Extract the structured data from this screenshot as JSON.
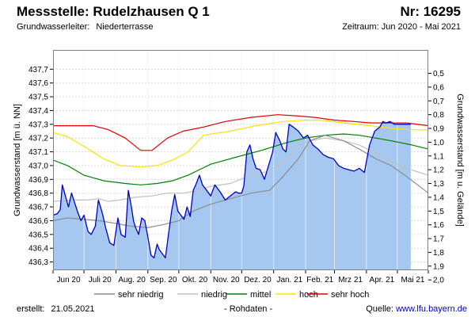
{
  "header": {
    "title": "Messstelle: Rudelzhausen Q 1",
    "number": "Nr: 16295",
    "aquifer_label": "Grundwasserleiter:",
    "aquifer_value": "Niederterrasse",
    "period": "Zeitraum: Jun 2020 - Mai 2021"
  },
  "footer": {
    "created_label": "erstellt:",
    "created_date": "21.05.2021",
    "data_note": "- Rohdaten -",
    "source_label": "Quelle:",
    "source_url": "www.lfu.bayern.de"
  },
  "colors": {
    "fill": "#a6c8f0",
    "measured": "#0000cc",
    "sehr_niedrig": "#8c8c8c",
    "niedrig": "#c0c0c0",
    "mittel": "#008000",
    "hoch": "#ffe100",
    "sehr_hoch": "#e00000",
    "grid": "#d8d8d8"
  },
  "chart_data": {
    "type": "line",
    "x_unit": "day",
    "xlim": [
      "2020-06-01",
      "2021-05-31"
    ],
    "xlabel": "",
    "ylabel_left": "Grundwasserstand [m ü. NN]",
    "ylabel_right": "Grundwasserstand [m u. Gelände]",
    "ylim_left": [
      436.24,
      437.84
    ],
    "yticks_left": [
      "436,3",
      "436,4",
      "436,5",
      "436,6",
      "436,7",
      "436,8",
      "436,9",
      "437,0",
      "437,1",
      "437,2",
      "437,3",
      "437,4",
      "437,5",
      "437,6",
      "437,7"
    ],
    "yticks_right": [
      "0,5",
      "0,6",
      "0,7",
      "0,8",
      "0,9",
      "1,0",
      "1,1",
      "1,2",
      "1,3",
      "1,4",
      "1,5",
      "1,6",
      "1,7",
      "1,8",
      "1,9",
      "2,0"
    ],
    "xticks": [
      "Jun 20",
      "Juli 20",
      "Aug. 20",
      "Sep. 20",
      "Okt. 20",
      "Nov. 20",
      "Dez. 20",
      "Jan. 21",
      "Feb. 21",
      "Mrz 21",
      "Apr. 21",
      "Mai 21"
    ],
    "grid": true,
    "legend_position": "bottom",
    "legend": [
      {
        "key": "sehr_niedrig",
        "label": "sehr niedrig"
      },
      {
        "key": "niedrig",
        "label": "niedrig"
      },
      {
        "key": "mittel",
        "label": "mittel"
      },
      {
        "key": "hoch",
        "label": "hoch"
      },
      {
        "key": "sehr_hoch",
        "label": "sehr hoch"
      }
    ],
    "series": [
      {
        "key": "sehr_hoch",
        "x": [
          "2020-06-01",
          "2020-06-20",
          "2020-07-10",
          "2020-07-25",
          "2020-08-10",
          "2020-08-25",
          "2020-09-05",
          "2020-09-20",
          "2020-10-05",
          "2020-10-25",
          "2020-11-15",
          "2020-12-10",
          "2021-01-05",
          "2021-01-25",
          "2021-02-10",
          "2021-03-01",
          "2021-03-20",
          "2021-04-05",
          "2021-04-20",
          "2021-05-10",
          "2021-05-31"
        ],
        "y": [
          437.29,
          437.29,
          437.29,
          437.26,
          437.2,
          437.11,
          437.11,
          437.2,
          437.25,
          437.28,
          437.32,
          437.35,
          437.37,
          437.36,
          437.35,
          437.33,
          437.32,
          437.31,
          437.31,
          437.31,
          437.29
        ]
      },
      {
        "key": "hoch",
        "x": [
          "2020-06-01",
          "2020-06-15",
          "2020-07-01",
          "2020-07-20",
          "2020-08-05",
          "2020-08-25",
          "2020-09-10",
          "2020-09-25",
          "2020-10-10",
          "2020-10-25",
          "2020-11-20",
          "2020-12-15",
          "2021-01-10",
          "2021-02-01",
          "2021-02-15",
          "2021-03-10",
          "2021-04-05",
          "2021-04-25",
          "2021-05-15",
          "2021-05-31"
        ],
        "y": [
          437.24,
          437.21,
          437.14,
          437.05,
          437.0,
          436.99,
          437.0,
          437.04,
          437.1,
          437.22,
          437.25,
          437.29,
          437.32,
          437.33,
          437.33,
          437.31,
          437.29,
          437.27,
          437.26,
          437.26
        ]
      },
      {
        "key": "mittel",
        "x": [
          "2020-06-01",
          "2020-06-15",
          "2020-07-01",
          "2020-07-20",
          "2020-08-10",
          "2020-08-25",
          "2020-09-10",
          "2020-09-25",
          "2020-10-10",
          "2020-11-01",
          "2020-11-25",
          "2020-12-20",
          "2021-01-15",
          "2021-02-01",
          "2021-02-20",
          "2021-03-10",
          "2021-03-25",
          "2021-04-10",
          "2021-04-25",
          "2021-05-15",
          "2021-05-31"
        ],
        "y": [
          437.04,
          437.0,
          436.93,
          436.89,
          436.87,
          436.86,
          436.87,
          436.89,
          436.93,
          437.01,
          437.06,
          437.11,
          437.17,
          437.2,
          437.22,
          437.23,
          437.22,
          437.2,
          437.18,
          437.15,
          437.12
        ]
      },
      {
        "key": "niedrig",
        "x": [
          "2020-06-01",
          "2020-06-20",
          "2020-07-05",
          "2020-07-15",
          "2020-07-25",
          "2020-08-05",
          "2020-08-20",
          "2020-09-05",
          "2020-09-20",
          "2020-10-05",
          "2020-10-20",
          "2020-11-01",
          "2020-11-20",
          "2020-12-10",
          "2020-12-28",
          "2021-01-15",
          "2021-01-25",
          "2021-02-05",
          "2021-02-20",
          "2021-03-10",
          "2021-03-25",
          "2021-04-10",
          "2021-04-25",
          "2021-05-10",
          "2021-05-31"
        ],
        "y": [
          436.74,
          436.75,
          436.75,
          436.76,
          436.74,
          436.75,
          436.77,
          436.78,
          436.8,
          436.8,
          436.82,
          436.85,
          436.87,
          436.93,
          436.96,
          437.05,
          437.15,
          437.18,
          437.2,
          437.18,
          437.15,
          437.09,
          437.03,
          436.98,
          436.93
        ]
      },
      {
        "key": "sehr_niedrig",
        "x": [
          "2020-06-01",
          "2020-06-15",
          "2020-07-01",
          "2020-07-15",
          "2020-08-01",
          "2020-08-15",
          "2020-09-01",
          "2020-09-15",
          "2020-10-01",
          "2020-10-15",
          "2020-11-01",
          "2020-11-20",
          "2020-12-10",
          "2020-12-28",
          "2021-01-10",
          "2021-01-25",
          "2021-02-05",
          "2021-02-20",
          "2021-03-10",
          "2021-03-25",
          "2021-04-10",
          "2021-04-25",
          "2021-05-10",
          "2021-05-31"
        ],
        "y": [
          436.6,
          436.62,
          436.61,
          436.6,
          436.58,
          436.56,
          436.55,
          436.57,
          436.6,
          436.67,
          436.72,
          436.76,
          436.8,
          436.82,
          436.92,
          437.05,
          437.18,
          437.22,
          437.18,
          437.12,
          437.05,
          437.0,
          436.92,
          436.8
        ]
      },
      {
        "key": "measured",
        "fill": true,
        "x": [
          "2020-06-01",
          "2020-06-05",
          "2020-06-08",
          "2020-06-10",
          "2020-06-13",
          "2020-06-16",
          "2020-06-19",
          "2020-06-22",
          "2020-06-25",
          "2020-06-28",
          "2020-07-01",
          "2020-07-05",
          "2020-07-08",
          "2020-07-12",
          "2020-07-15",
          "2020-07-19",
          "2020-07-22",
          "2020-07-26",
          "2020-07-30",
          "2020-08-03",
          "2020-08-06",
          "2020-08-10",
          "2020-08-13",
          "2020-08-16",
          "2020-08-18",
          "2020-08-20",
          "2020-08-23",
          "2020-08-26",
          "2020-08-29",
          "2020-09-01",
          "2020-09-04",
          "2020-09-07",
          "2020-09-10",
          "2020-09-12",
          "2020-09-15",
          "2020-09-18",
          "2020-09-21",
          "2020-09-24",
          "2020-09-27",
          "2020-09-30",
          "2020-10-03",
          "2020-10-06",
          "2020-10-09",
          "2020-10-12",
          "2020-10-15",
          "2020-10-18",
          "2020-10-21",
          "2020-10-24",
          "2020-10-28",
          "2020-11-01",
          "2020-11-05",
          "2020-11-10",
          "2020-11-15",
          "2020-11-20",
          "2020-11-25",
          "2020-11-28",
          "2020-12-01",
          "2020-12-03",
          "2020-12-06",
          "2020-12-09",
          "2020-12-12",
          "2020-12-15",
          "2020-12-19",
          "2020-12-23",
          "2020-12-27",
          "2020-12-31",
          "2021-01-03",
          "2021-01-07",
          "2021-01-10",
          "2021-01-13",
          "2021-01-16",
          "2021-01-20",
          "2021-01-25",
          "2021-01-30",
          "2021-02-03",
          "2021-02-08",
          "2021-02-13",
          "2021-02-18",
          "2021-02-23",
          "2021-02-28",
          "2021-03-05",
          "2021-03-10",
          "2021-03-15",
          "2021-03-20",
          "2021-03-25",
          "2021-03-30",
          "2021-04-04",
          "2021-04-09",
          "2021-04-14",
          "2021-04-17",
          "2021-04-20",
          "2021-04-24",
          "2021-04-28",
          "2021-05-02",
          "2021-05-06",
          "2021-05-10",
          "2021-05-14"
        ],
        "y": [
          436.64,
          436.65,
          436.68,
          436.86,
          436.78,
          436.7,
          436.8,
          436.73,
          436.66,
          436.6,
          436.64,
          436.52,
          436.5,
          436.56,
          436.75,
          436.65,
          436.55,
          436.44,
          436.42,
          436.62,
          436.5,
          436.48,
          436.82,
          436.7,
          436.6,
          436.55,
          436.5,
          436.62,
          436.6,
          436.48,
          436.35,
          436.33,
          436.43,
          436.39,
          436.36,
          436.33,
          436.5,
          436.67,
          436.79,
          436.67,
          436.64,
          436.61,
          436.7,
          436.63,
          436.82,
          436.87,
          436.93,
          436.86,
          436.82,
          436.78,
          436.86,
          436.81,
          436.75,
          436.78,
          436.81,
          436.8,
          436.8,
          436.85,
          437.1,
          437.15,
          437.05,
          436.98,
          436.97,
          436.9,
          437.0,
          437.1,
          437.24,
          437.18,
          437.12,
          437.1,
          437.3,
          437.28,
          437.25,
          437.2,
          437.22,
          437.15,
          437.12,
          437.08,
          437.06,
          437.05,
          437.0,
          436.98,
          436.97,
          436.96,
          436.98,
          436.95,
          437.15,
          437.25,
          437.28,
          437.32,
          437.31,
          437.32,
          437.3,
          437.3,
          437.3,
          437.3,
          437.3
        ]
      }
    ]
  }
}
